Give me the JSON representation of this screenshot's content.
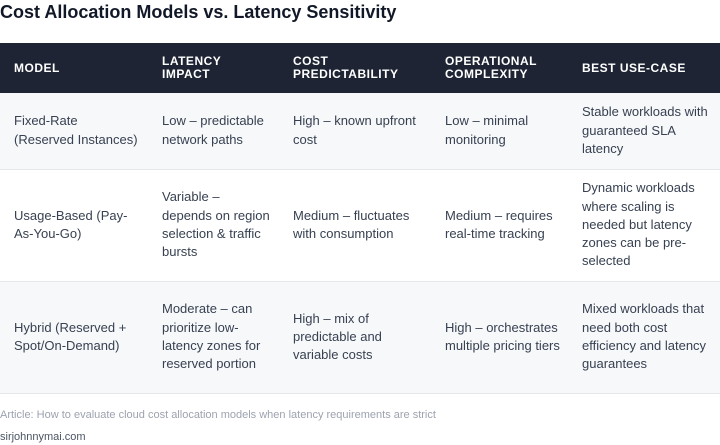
{
  "title": "Cost Allocation Models vs. Latency Sensitivity",
  "table": {
    "headers": [
      "MODEL",
      "LATENCY IMPACT",
      "COST PREDICTABILITY",
      "OPERATIONAL COMPLEXITY",
      "BEST USE-CASE"
    ],
    "rows": [
      [
        "Fixed-Rate (Reserved Instances)",
        "Low – predictable network paths",
        "High – known upfront cost",
        "Low – minimal monitoring",
        "Stable workloads with guaranteed SLA latency"
      ],
      [
        "Usage-Based (Pay-As-You-Go)",
        "Variable – depends on region selection & traffic bursts",
        "Medium – fluctuates with consumption",
        "Medium – requires real-time tracking",
        "Dynamic workloads where scaling is needed but latency zones can be pre-selected"
      ],
      [
        "Hybrid (Reserved + Spot/On-Demand)",
        "Moderate – can prioritize low-latency zones for reserved portion",
        "High – mix of predictable and variable costs",
        "High – orchestrates multiple pricing tiers",
        "Mixed workloads that need both cost efficiency and latency guarantees"
      ]
    ]
  },
  "caption": "Article: How to evaluate cloud cost allocation models when latency requirements are strict",
  "source": "sirjohnnymai.com"
}
